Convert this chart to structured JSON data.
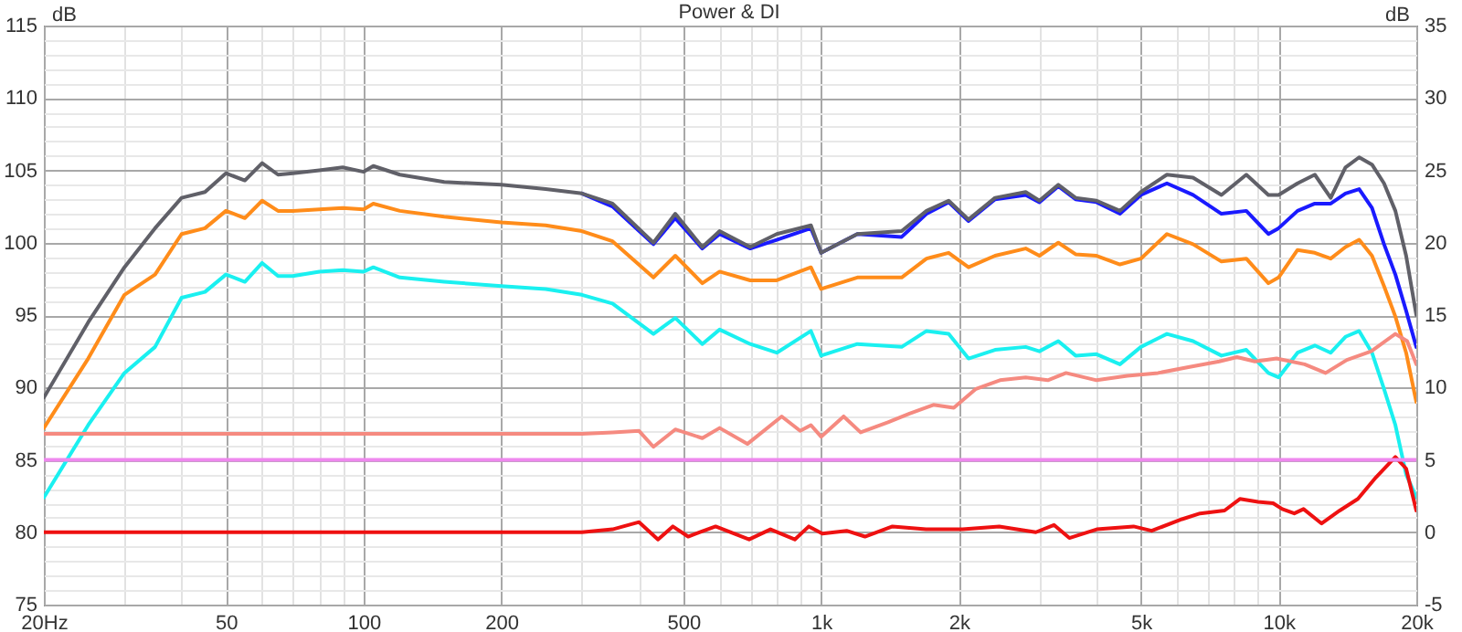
{
  "chart_data": {
    "type": "line",
    "title": "Power & DI",
    "ylabel": "dB",
    "y2label": "dB",
    "xlim": [
      20,
      20000
    ],
    "xticks": [
      {
        "value": 20,
        "label": "20Hz"
      },
      {
        "value": 30,
        "label": null
      },
      {
        "value": 40,
        "label": null
      },
      50,
      {
        "value": 60,
        "label": null
      },
      {
        "value": 70,
        "label": null
      },
      {
        "value": 80,
        "label": null
      },
      {
        "value": 90,
        "label": null
      },
      100,
      200,
      {
        "value": 300,
        "label": null
      },
      {
        "value": 400,
        "label": null
      },
      500,
      {
        "value": 600,
        "label": null
      },
      {
        "value": 700,
        "label": null
      },
      {
        "value": 800,
        "label": null
      },
      {
        "value": 900,
        "label": null
      },
      {
        "value": 1000,
        "label": "1k"
      },
      {
        "value": 2000,
        "label": "2k"
      },
      {
        "value": 3000,
        "label": null
      },
      {
        "value": 4000,
        "label": null
      },
      {
        "value": 5000,
        "label": "5k"
      },
      {
        "value": 6000,
        "label": null
      },
      {
        "value": 7000,
        "label": null
      },
      {
        "value": 8000,
        "label": null
      },
      {
        "value": 9000,
        "label": null
      },
      {
        "value": 10000,
        "label": "10k"
      },
      {
        "value": 20000,
        "label": "20k"
      }
    ],
    "log": "x",
    "ylim": [
      75,
      115
    ],
    "yticks": [
      75,
      {
        "value": 76,
        "label": null
      },
      {
        "value": 77,
        "label": null
      },
      {
        "value": 78,
        "label": null
      },
      {
        "value": 79,
        "label": null
      },
      80,
      {
        "value": 81,
        "label": null
      },
      {
        "value": 82,
        "label": null
      },
      {
        "value": 83,
        "label": null
      },
      {
        "value": 84,
        "label": null
      },
      85,
      {
        "value": 86,
        "label": null
      },
      {
        "value": 87,
        "label": null
      },
      {
        "value": 88,
        "label": null
      },
      {
        "value": 89,
        "label": null
      },
      90,
      {
        "value": 91,
        "label": null
      },
      {
        "value": 92,
        "label": null
      },
      {
        "value": 93,
        "label": null
      },
      {
        "value": 94,
        "label": null
      },
      95,
      {
        "value": 96,
        "label": null
      },
      {
        "value": 97,
        "label": null
      },
      {
        "value": 98,
        "label": null
      },
      {
        "value": 99,
        "label": null
      },
      100,
      {
        "value": 101,
        "label": null
      },
      {
        "value": 102,
        "label": null
      },
      {
        "value": 103,
        "label": null
      },
      {
        "value": 104,
        "label": null
      },
      105,
      {
        "value": 106,
        "label": null
      },
      {
        "value": 107,
        "label": null
      },
      {
        "value": 108,
        "label": null
      },
      {
        "value": 109,
        "label": null
      },
      110,
      {
        "value": 111,
        "label": null
      },
      {
        "value": 112,
        "label": null
      },
      {
        "value": 113,
        "label": null
      },
      {
        "value": 114,
        "label": null
      },
      115
    ],
    "y2lim": [
      -5,
      35
    ],
    "y2ticks": [
      -5,
      0,
      5,
      10,
      15,
      20,
      25,
      30,
      35
    ],
    "grid": true,
    "x": [
      20,
      25,
      30,
      35,
      40,
      45,
      50,
      55,
      60,
      65,
      70,
      80,
      90,
      100,
      105,
      120,
      150,
      200,
      250,
      300,
      350,
      430,
      480,
      550,
      600,
      700,
      800,
      950,
      1000,
      1200,
      1500,
      1700,
      1900,
      2100,
      2400,
      2800,
      3000,
      3300,
      3600,
      4000,
      4500,
      5000,
      5700,
      6500,
      7500,
      8500,
      9500,
      10000,
      11000,
      12000,
      13000,
      14000,
      15000,
      16000,
      17000,
      18000,
      19000,
      20000
    ],
    "series": [
      {
        "color": "#606068",
        "values": [
          89.3,
          94.5,
          98.3,
          101,
          103.1,
          103.5,
          104.8,
          104.3,
          105.5,
          104.7,
          104.8,
          105,
          105.2,
          104.9,
          105.3,
          104.7,
          104.2,
          104,
          103.7,
          103.4,
          102.7,
          100,
          102,
          99.7,
          100.8,
          99.7,
          100.6,
          101.2,
          99.3,
          100.6,
          100.8,
          102.2,
          102.9,
          101.6,
          103.1,
          103.5,
          102.9,
          104,
          103.1,
          102.9,
          102.2,
          103.5,
          104.7,
          104.5,
          103.3,
          104.7,
          103.3,
          103.3,
          104.1,
          104.7,
          103.1,
          105.2,
          105.9,
          105.4,
          104.1,
          102.2,
          99.1,
          95
        ]
      },
      {
        "color": "#1a1aff",
        "values": [
          null,
          null,
          null,
          null,
          null,
          null,
          null,
          null,
          null,
          null,
          null,
          null,
          null,
          null,
          null,
          null,
          null,
          null,
          null,
          103.4,
          102.5,
          99.9,
          101.7,
          99.6,
          100.6,
          99.6,
          100.2,
          101,
          99.3,
          100.6,
          100.4,
          102,
          102.8,
          101.5,
          103,
          103.3,
          102.8,
          103.9,
          103,
          102.8,
          102,
          103.3,
          104.1,
          103.3,
          102,
          102.2,
          100.6,
          101,
          102.2,
          102.7,
          102.7,
          103.4,
          103.7,
          102.4,
          99.9,
          97.8,
          95.3,
          92.8
        ]
      },
      {
        "color": "#ff8c1a",
        "values": [
          87.2,
          92,
          96.4,
          97.8,
          100.6,
          101,
          102.2,
          101.7,
          102.9,
          102.2,
          102.2,
          102.3,
          102.4,
          102.3,
          102.7,
          102.2,
          101.8,
          101.4,
          101.2,
          100.8,
          100.1,
          97.6,
          99.1,
          97.2,
          98,
          97.4,
          97.4,
          98.3,
          96.8,
          97.6,
          97.6,
          98.9,
          99.3,
          98.3,
          99.1,
          99.6,
          99.1,
          100,
          99.2,
          99.1,
          98.5,
          98.9,
          100.6,
          99.9,
          98.7,
          98.9,
          97.2,
          97.6,
          99.5,
          99.3,
          98.9,
          99.7,
          100.2,
          99.1,
          97,
          94.9,
          92.4,
          89
        ]
      },
      {
        "color": "#1af0f0",
        "values": [
          82.4,
          87.4,
          91,
          92.8,
          96.2,
          96.6,
          97.8,
          97.3,
          98.6,
          97.7,
          97.7,
          98,
          98.1,
          98,
          98.3,
          97.6,
          97.3,
          97,
          96.8,
          96.4,
          95.8,
          93.7,
          94.8,
          93,
          94,
          93,
          92.4,
          93.9,
          92.2,
          93,
          92.8,
          93.9,
          93.7,
          92,
          92.6,
          92.8,
          92.5,
          93.2,
          92.2,
          92.3,
          91.6,
          92.8,
          93.7,
          93.2,
          92.2,
          92.6,
          91,
          90.7,
          92.4,
          92.9,
          92.4,
          93.5,
          93.9,
          92.4,
          89.9,
          87.4,
          84,
          82.4
        ]
      },
      {
        "color": "#f58a80",
        "axis": "y2",
        "x": [
          20,
          300,
          350,
          400,
          430,
          480,
          550,
          600,
          690,
          820,
          900,
          950,
          1000,
          1120,
          1220,
          1400,
          1560,
          1760,
          1950,
          2180,
          2460,
          2800,
          3130,
          3430,
          4000,
          4670,
          5450,
          6350,
          7420,
          8110,
          8880,
          9900,
          11400,
          12670,
          14100,
          15940,
          18000,
          19100,
          20000
        ],
        "values": [
          6.8,
          6.8,
          6.9,
          7,
          5.9,
          7.1,
          6.5,
          7.2,
          6.1,
          8,
          7,
          7.4,
          6.6,
          8,
          6.9,
          7.6,
          8.2,
          8.8,
          8.6,
          9.9,
          10.5,
          10.7,
          10.5,
          11,
          10.5,
          10.8,
          11,
          11.4,
          11.8,
          12.1,
          11.8,
          12,
          11.6,
          11,
          11.9,
          12.5,
          13.7,
          13.2,
          11.6
        ]
      },
      {
        "color": "#ee1111",
        "axis": "y2",
        "x": [
          20,
          300,
          350,
          400,
          440,
          474,
          512,
          588,
          696,
          775,
          876,
          940,
          1006,
          1137,
          1247,
          1432,
          1696,
          2038,
          2451,
          2947,
          3228,
          3488,
          4004,
          4818,
          5279,
          6149,
          6735,
          7618,
          8230,
          9014,
          9728,
          10187,
          10822,
          11337,
          12418,
          13606,
          14905,
          16330,
          18000,
          19000,
          20000
        ],
        "values": [
          0,
          0,
          0.2,
          0.7,
          -0.5,
          0.4,
          -0.3,
          0.4,
          -0.5,
          0.2,
          -0.5,
          0.4,
          -0.1,
          0.1,
          -0.3,
          0.4,
          0.2,
          0.2,
          0.4,
          0,
          0.5,
          -0.4,
          0.2,
          0.4,
          0.1,
          0.9,
          1.3,
          1.5,
          2.3,
          2.1,
          2,
          1.6,
          1.3,
          1.6,
          0.6,
          1.5,
          2.3,
          3.8,
          5.2,
          4.4,
          1.5
        ]
      }
    ],
    "ref_lines": [
      {
        "axis": "y2",
        "value": 5,
        "color": "#ee88ee"
      }
    ]
  }
}
